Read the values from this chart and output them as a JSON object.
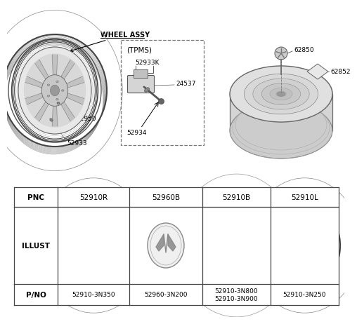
{
  "bg_color": "#ffffff",
  "text_color": "#000000",
  "line_color": "#555555",
  "diagram_labels": {
    "wheel_assy": "WHEEL ASSY",
    "tpms": "(TPMS)",
    "part_52950": "52950",
    "part_52933": "52933",
    "part_52933K": "52933K",
    "part_24537": "24537",
    "part_52934": "52934",
    "part_62850": "62850",
    "part_62852": "62852"
  },
  "table_headers": [
    "PNC",
    "52910R",
    "52960B",
    "52910B",
    "52910L"
  ],
  "table_pno": [
    "52910-3N350",
    "52960-3N200",
    "52910-3N800\n52910-3N900",
    "52910-3N250"
  ],
  "table_row_labels": [
    "PNC",
    "ILLUST",
    "P/NO"
  ]
}
